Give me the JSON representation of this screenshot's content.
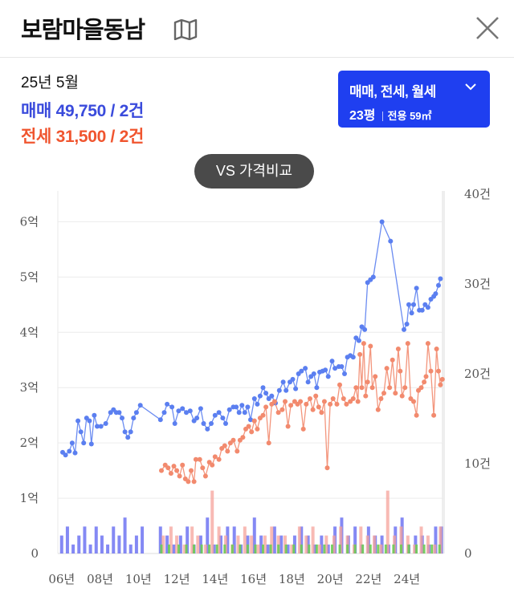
{
  "header": {
    "title": "보람마을동남",
    "map_icon": "map-icon",
    "close_icon": "close-icon"
  },
  "summary": {
    "date": "25년 5월",
    "sale_label": "매매",
    "sale_value": "49,750 / 2건",
    "jeonse_label": "전세",
    "jeonse_value": "31,500 / 2건"
  },
  "filter": {
    "types": "매매, 전세, 월세",
    "size": "23평",
    "area": "전용 59㎡"
  },
  "vs_button": "VS 가격비교",
  "colors": {
    "sale": "#5b7ff0",
    "jeonse": "#f28a6e",
    "sale_bar": "#6f74f2",
    "jeonse_bar": "#f5a39b",
    "green_bar": "#6dcc55",
    "accent": "#1f3ff0"
  },
  "chart_data": {
    "type": "line",
    "x_unit": "year",
    "xlim": [
      2005.8,
      2025.9
    ],
    "ylim_left": [
      0,
      6.5
    ],
    "ylim_right": [
      0,
      40
    ],
    "left_ticks": [
      {
        "value": 0,
        "label": "0"
      },
      {
        "value": 1,
        "label": "1억"
      },
      {
        "value": 2,
        "label": "2억"
      },
      {
        "value": 3,
        "label": "3억"
      },
      {
        "value": 4,
        "label": "4억"
      },
      {
        "value": 5,
        "label": "5억"
      },
      {
        "value": 6,
        "label": "6억"
      }
    ],
    "right_ticks": [
      {
        "value": 0,
        "label": "0"
      },
      {
        "value": 10,
        "label": "10건"
      },
      {
        "value": 20,
        "label": "20건"
      },
      {
        "value": 30,
        "label": "30건"
      },
      {
        "value": 40,
        "label": "40건"
      }
    ],
    "x_ticks": [
      {
        "value": 2006,
        "label": "06년"
      },
      {
        "value": 2008,
        "label": "08년"
      },
      {
        "value": 2010,
        "label": "10년"
      },
      {
        "value": 2012,
        "label": "12년"
      },
      {
        "value": 2014,
        "label": "14년"
      },
      {
        "value": 2016,
        "label": "16년"
      },
      {
        "value": 2018,
        "label": "18년"
      },
      {
        "value": 2020,
        "label": "20년"
      },
      {
        "value": 2022,
        "label": "22년"
      },
      {
        "value": 2024,
        "label": "24년"
      }
    ],
    "grid": "horizontal",
    "series": [
      {
        "name": "매매",
        "axis": "left",
        "points": [
          [
            2006.05,
            1.83
          ],
          [
            2006.2,
            1.78
          ],
          [
            2006.4,
            1.85
          ],
          [
            2006.55,
            2.0
          ],
          [
            2006.7,
            1.82
          ],
          [
            2006.85,
            2.4
          ],
          [
            2007.0,
            2.2
          ],
          [
            2007.15,
            2.0
          ],
          [
            2007.3,
            2.45
          ],
          [
            2007.45,
            2.4
          ],
          [
            2007.55,
            1.98
          ],
          [
            2007.7,
            2.5
          ],
          [
            2007.85,
            2.3
          ],
          [
            2008.05,
            2.3
          ],
          [
            2008.3,
            2.35
          ],
          [
            2008.55,
            2.55
          ],
          [
            2008.7,
            2.6
          ],
          [
            2008.85,
            2.55
          ],
          [
            2009.0,
            2.55
          ],
          [
            2009.15,
            2.45
          ],
          [
            2009.3,
            2.2
          ],
          [
            2009.45,
            2.1
          ],
          [
            2009.6,
            2.2
          ],
          [
            2009.75,
            2.45
          ],
          [
            2009.9,
            2.55
          ],
          [
            2010.1,
            2.68
          ],
          [
            2011.15,
            2.42
          ],
          [
            2011.35,
            2.55
          ],
          [
            2011.5,
            2.7
          ],
          [
            2011.75,
            2.65
          ],
          [
            2011.9,
            2.35
          ],
          [
            2012.1,
            2.58
          ],
          [
            2012.3,
            2.62
          ],
          [
            2012.5,
            2.55
          ],
          [
            2012.7,
            2.58
          ],
          [
            2012.9,
            2.4
          ],
          [
            2013.05,
            2.45
          ],
          [
            2013.25,
            2.62
          ],
          [
            2013.4,
            2.35
          ],
          [
            2013.6,
            2.25
          ],
          [
            2013.8,
            2.35
          ],
          [
            2014.0,
            2.5
          ],
          [
            2014.2,
            2.55
          ],
          [
            2014.4,
            2.45
          ],
          [
            2014.55,
            2.35
          ],
          [
            2014.75,
            2.6
          ],
          [
            2014.95,
            2.65
          ],
          [
            2015.1,
            2.65
          ],
          [
            2015.25,
            2.55
          ],
          [
            2015.4,
            2.68
          ],
          [
            2015.55,
            2.55
          ],
          [
            2015.7,
            2.65
          ],
          [
            2015.85,
            2.42
          ],
          [
            2016.05,
            2.8
          ],
          [
            2016.2,
            2.7
          ],
          [
            2016.35,
            2.85
          ],
          [
            2016.5,
            3.0
          ],
          [
            2016.65,
            2.9
          ],
          [
            2016.8,
            2.8
          ],
          [
            2016.95,
            2.85
          ],
          [
            2017.15,
            2.72
          ],
          [
            2017.35,
            2.95
          ],
          [
            2017.55,
            3.1
          ],
          [
            2017.7,
            2.95
          ],
          [
            2017.9,
            3.1
          ],
          [
            2018.05,
            3.15
          ],
          [
            2018.2,
            2.98
          ],
          [
            2018.35,
            3.25
          ],
          [
            2018.5,
            3.3
          ],
          [
            2018.7,
            3.35
          ],
          [
            2018.85,
            3.1
          ],
          [
            2019.0,
            3.2
          ],
          [
            2019.15,
            3.25
          ],
          [
            2019.3,
            3.0
          ],
          [
            2019.45,
            3.28
          ],
          [
            2019.6,
            3.3
          ],
          [
            2019.75,
            3.32
          ],
          [
            2019.9,
            3.2
          ],
          [
            2020.1,
            3.48
          ],
          [
            2020.25,
            3.35
          ],
          [
            2020.45,
            3.38
          ],
          [
            2020.6,
            3.38
          ],
          [
            2020.75,
            3.25
          ],
          [
            2020.9,
            3.55
          ],
          [
            2021.05,
            3.58
          ],
          [
            2021.2,
            3.55
          ],
          [
            2021.35,
            3.9
          ],
          [
            2021.5,
            3.85
          ],
          [
            2021.65,
            4.1
          ],
          [
            2021.8,
            4.05
          ],
          [
            2021.95,
            4.9
          ],
          [
            2022.1,
            4.95
          ],
          [
            2022.25,
            5.0
          ],
          [
            2022.7,
            6.0
          ],
          [
            2023.15,
            5.65
          ],
          [
            2023.85,
            4.05
          ],
          [
            2024.0,
            4.15
          ],
          [
            2024.1,
            4.5
          ],
          [
            2024.25,
            4.35
          ],
          [
            2024.35,
            4.5
          ],
          [
            2024.5,
            4.8
          ],
          [
            2024.65,
            4.4
          ],
          [
            2024.8,
            4.4
          ],
          [
            2024.95,
            4.5
          ],
          [
            2025.1,
            4.45
          ],
          [
            2025.25,
            4.6
          ],
          [
            2025.4,
            4.65
          ],
          [
            2025.5,
            4.7
          ],
          [
            2025.65,
            4.85
          ],
          [
            2025.75,
            4.97
          ]
        ]
      },
      {
        "name": "전세",
        "axis": "left",
        "points": [
          [
            2011.2,
            1.5
          ],
          [
            2011.4,
            1.6
          ],
          [
            2011.55,
            1.55
          ],
          [
            2011.7,
            1.45
          ],
          [
            2011.85,
            1.58
          ],
          [
            2012.0,
            1.5
          ],
          [
            2012.15,
            1.4
          ],
          [
            2012.3,
            1.6
          ],
          [
            2012.45,
            1.35
          ],
          [
            2012.6,
            1.3
          ],
          [
            2012.75,
            1.5
          ],
          [
            2012.9,
            1.3
          ],
          [
            2013.0,
            1.7
          ],
          [
            2013.2,
            1.7
          ],
          [
            2013.35,
            1.55
          ],
          [
            2013.5,
            1.4
          ],
          [
            2013.7,
            1.65
          ],
          [
            2013.85,
            1.6
          ],
          [
            2014.0,
            1.75
          ],
          [
            2014.2,
            1.7
          ],
          [
            2014.35,
            1.9
          ],
          [
            2014.5,
            1.95
          ],
          [
            2014.65,
            1.85
          ],
          [
            2014.8,
            2.0
          ],
          [
            2014.95,
            2.05
          ],
          [
            2015.15,
            1.85
          ],
          [
            2015.3,
            2.05
          ],
          [
            2015.45,
            2.1
          ],
          [
            2015.6,
            2.25
          ],
          [
            2015.75,
            2.3
          ],
          [
            2015.9,
            2.2
          ],
          [
            2016.05,
            2.4
          ],
          [
            2016.2,
            2.25
          ],
          [
            2016.35,
            2.45
          ],
          [
            2016.5,
            2.5
          ],
          [
            2016.65,
            2.65
          ],
          [
            2016.8,
            2.0
          ],
          [
            2016.95,
            2.7
          ],
          [
            2017.1,
            2.75
          ],
          [
            2017.3,
            2.55
          ],
          [
            2017.5,
            2.6
          ],
          [
            2017.65,
            2.75
          ],
          [
            2017.8,
            2.3
          ],
          [
            2017.95,
            2.68
          ],
          [
            2018.15,
            2.75
          ],
          [
            2018.3,
            2.7
          ],
          [
            2018.45,
            2.75
          ],
          [
            2018.6,
            2.25
          ],
          [
            2018.75,
            2.7
          ],
          [
            2018.95,
            2.8
          ],
          [
            2019.1,
            2.6
          ],
          [
            2019.25,
            2.85
          ],
          [
            2019.4,
            2.65
          ],
          [
            2019.55,
            2.55
          ],
          [
            2019.7,
            2.75
          ],
          [
            2019.85,
            1.55
          ],
          [
            2020.0,
            2.7
          ],
          [
            2020.15,
            2.8
          ],
          [
            2020.35,
            2.7
          ],
          [
            2020.5,
            3.05
          ],
          [
            2020.7,
            2.8
          ],
          [
            2020.85,
            2.7
          ],
          [
            2021.05,
            2.75
          ],
          [
            2021.2,
            2.8
          ],
          [
            2021.35,
            3.0
          ],
          [
            2021.45,
            2.75
          ],
          [
            2021.55,
            3.6
          ],
          [
            2021.65,
            3.0
          ],
          [
            2021.75,
            3.8
          ],
          [
            2021.85,
            2.85
          ],
          [
            2021.95,
            3.1
          ],
          [
            2022.1,
            3.75
          ],
          [
            2022.2,
            3.0
          ],
          [
            2022.35,
            3.2
          ],
          [
            2022.5,
            2.6
          ],
          [
            2022.65,
            2.8
          ],
          [
            2022.8,
            2.9
          ],
          [
            2022.95,
            3.35
          ],
          [
            2023.1,
            3.0
          ],
          [
            2023.25,
            3.5
          ],
          [
            2023.4,
            2.9
          ],
          [
            2023.55,
            3.7
          ],
          [
            2023.65,
            3.3
          ],
          [
            2023.75,
            2.85
          ],
          [
            2023.9,
            3.0
          ],
          [
            2024.05,
            3.8
          ],
          [
            2024.2,
            2.8
          ],
          [
            2024.35,
            2.75
          ],
          [
            2024.5,
            2.5
          ],
          [
            2024.6,
            2.95
          ],
          [
            2024.75,
            3.0
          ],
          [
            2024.9,
            3.1
          ],
          [
            2025.0,
            3.2
          ],
          [
            2025.1,
            3.8
          ],
          [
            2025.25,
            3.3
          ],
          [
            2025.4,
            2.5
          ],
          [
            2025.55,
            3.7
          ],
          [
            2025.65,
            3.3
          ],
          [
            2025.75,
            3.05
          ],
          [
            2025.85,
            3.15
          ]
        ]
      }
    ],
    "volume_sale_x": [
      2006.0,
      2006.3,
      2006.6,
      2006.9,
      2007.2,
      2007.5,
      2007.8,
      2008.1,
      2008.4,
      2008.7,
      2009.0,
      2009.3,
      2009.6,
      2009.9,
      2010.2,
      2011.15,
      2011.5,
      2011.85,
      2012.2,
      2012.55,
      2012.9,
      2013.25,
      2013.6,
      2013.95,
      2014.3,
      2014.65,
      2015.0,
      2015.35,
      2015.7,
      2016.05,
      2016.4,
      2016.75,
      2017.1,
      2017.45,
      2017.8,
      2018.15,
      2018.5,
      2018.85,
      2019.2,
      2019.55,
      2019.9,
      2020.25,
      2020.6,
      2020.95,
      2021.3,
      2021.65,
      2022.0,
      2022.35,
      2022.7,
      2023.05,
      2023.4,
      2023.75,
      2024.1,
      2024.45,
      2024.8,
      2025.15,
      2025.5,
      2025.8
    ],
    "volume_sale_counts": [
      2,
      3,
      1,
      2,
      3,
      1,
      3,
      2,
      1,
      3,
      2,
      4,
      1,
      2,
      3,
      3,
      2,
      1,
      2,
      3,
      1,
      2,
      4,
      1,
      2,
      3,
      3,
      1,
      2,
      4,
      2,
      1,
      3,
      2,
      1,
      2,
      3,
      2,
      1,
      2,
      1,
      3,
      4,
      2,
      3,
      1,
      3,
      2,
      2,
      1,
      3,
      4,
      1,
      2,
      2,
      1,
      3,
      3
    ],
    "volume_jeonse_x": [
      2011.3,
      2011.7,
      2012.0,
      2012.4,
      2012.8,
      2013.1,
      2013.5,
      2013.85,
      2014.2,
      2014.55,
      2014.9,
      2015.2,
      2015.55,
      2015.9,
      2016.25,
      2016.6,
      2016.95,
      2017.3,
      2017.65,
      2018.0,
      2018.4,
      2018.75,
      2019.1,
      2019.45,
      2019.8,
      2020.2,
      2020.55,
      2020.9,
      2021.25,
      2021.6,
      2021.95,
      2022.3,
      2022.65,
      2023.0,
      2023.35,
      2023.7,
      2024.05,
      2024.4,
      2024.75,
      2025.1,
      2025.45,
      2025.75
    ],
    "volume_jeonse_counts": [
      2,
      3,
      2,
      1,
      3,
      2,
      1,
      7,
      3,
      2,
      1,
      2,
      3,
      2,
      1,
      2,
      3,
      2,
      2,
      1,
      3,
      2,
      3,
      1,
      2,
      2,
      3,
      2,
      1,
      3,
      2,
      2,
      1,
      7,
      2,
      3,
      2,
      1,
      3,
      2,
      1,
      3
    ],
    "volume_green_x": [
      2011.2,
      2011.6,
      2012.1,
      2012.5,
      2012.9,
      2013.3,
      2013.7,
      2014.1,
      2014.5,
      2014.9,
      2015.3,
      2015.7,
      2016.1,
      2016.5,
      2016.9,
      2017.3,
      2017.7,
      2018.1,
      2018.5,
      2018.9,
      2019.3,
      2019.7,
      2020.1,
      2020.5,
      2020.9,
      2021.3,
      2021.7,
      2022.1,
      2022.5,
      2022.9,
      2023.3,
      2023.7,
      2024.1,
      2024.5,
      2024.9,
      2025.3,
      2025.7
    ],
    "volume_green_counts": [
      1,
      1,
      1,
      1,
      1,
      1,
      1,
      1,
      1,
      1,
      1,
      1,
      1,
      1,
      1,
      1,
      1,
      1,
      1,
      1,
      1,
      1,
      1,
      1,
      1,
      1,
      1,
      1,
      1,
      1,
      1,
      1,
      1,
      1,
      1,
      1,
      1
    ]
  }
}
